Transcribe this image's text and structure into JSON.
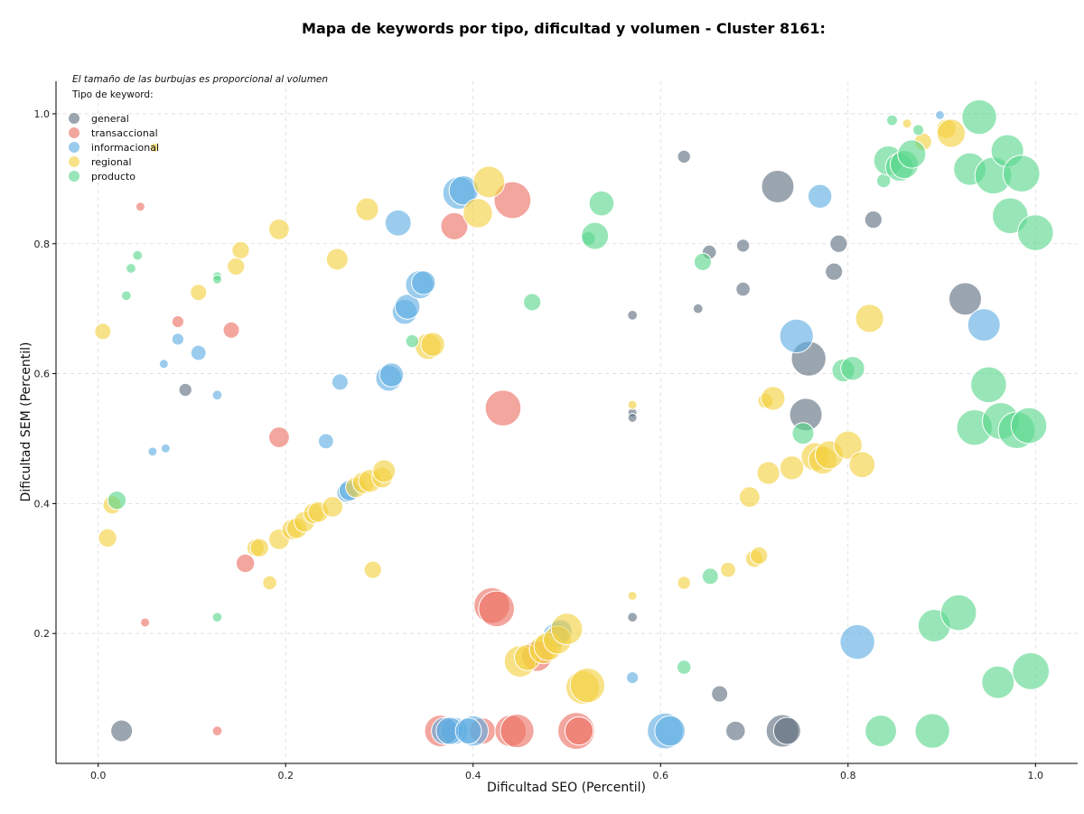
{
  "chart_data": {
    "type": "scatter",
    "title": "Mapa de keywords por tipo, dificultad y volumen - Cluster 8161:",
    "xlabel": "Dificultad SEO (Percentil)",
    "ylabel": "Dificultad SEM (Percentil)",
    "xlim": [
      -0.045,
      1.045
    ],
    "ylim": [
      0.0,
      1.05
    ],
    "xticks": [
      "0.0",
      "0.2",
      "0.4",
      "0.6",
      "0.8",
      "1.0"
    ],
    "yticks": [
      "0.2",
      "0.4",
      "0.6",
      "0.8",
      "1.0"
    ],
    "grid": true,
    "note": "El tamaño de las burbujas es proporcional al volumen",
    "legend": {
      "title": "Tipo de keyword:",
      "placement": "top-left"
    },
    "series": [
      {
        "name": "general",
        "color": "#5d6d7e",
        "points": [
          [
            0.025,
            0.05,
            2
          ],
          [
            0.093,
            0.575,
            1.2
          ],
          [
            0.57,
            0.69,
            0.9
          ],
          [
            0.57,
            0.54,
            0.8
          ],
          [
            0.57,
            0.532,
            0.8
          ],
          [
            0.57,
            0.225,
            0.9
          ],
          [
            0.625,
            0.934,
            1.2
          ],
          [
            0.652,
            0.787,
            1.3
          ],
          [
            0.688,
            0.797,
            1.2
          ],
          [
            0.688,
            0.73,
            1.3
          ],
          [
            0.64,
            0.7,
            0.9
          ],
          [
            0.663,
            0.107,
            1.5
          ],
          [
            0.68,
            0.05,
            1.8
          ],
          [
            0.725,
            0.888,
            3
          ],
          [
            0.73,
            0.05,
            3
          ],
          [
            0.735,
            0.05,
            2.5
          ],
          [
            0.755,
            0.537,
            3
          ],
          [
            0.758,
            0.623,
            3.2
          ],
          [
            0.785,
            0.757,
            1.6
          ],
          [
            0.79,
            0.8,
            1.6
          ],
          [
            0.827,
            0.837,
            1.6
          ],
          [
            0.925,
            0.715,
            3
          ]
        ]
      },
      {
        "name": "transaccional",
        "color": "#ec7063",
        "points": [
          [
            0.045,
            0.857,
            0.6
          ],
          [
            0.05,
            0.217,
            0.6
          ],
          [
            0.085,
            0.68,
            1.1
          ],
          [
            0.127,
            0.05,
            0.9
          ],
          [
            0.142,
            0.667,
            1.5
          ],
          [
            0.157,
            0.308,
            1.7
          ],
          [
            0.193,
            0.502,
            1.9
          ],
          [
            0.38,
            0.827,
            2.5
          ],
          [
            0.365,
            0.05,
            2.9
          ],
          [
            0.41,
            0.05,
            2.4
          ],
          [
            0.42,
            0.243,
            3.3
          ],
          [
            0.425,
            0.238,
            3.3
          ],
          [
            0.432,
            0.547,
            3.3
          ],
          [
            0.442,
            0.867,
            3.4
          ],
          [
            0.44,
            0.05,
            2.9
          ],
          [
            0.447,
            0.05,
            3.1
          ],
          [
            0.468,
            0.165,
            2.8
          ],
          [
            0.51,
            0.05,
            3.4
          ],
          [
            0.513,
            0.05,
            2.6
          ]
        ]
      },
      {
        "name": "informacional",
        "color": "#5dade2",
        "points": [
          [
            0.058,
            0.48,
            0.6
          ],
          [
            0.07,
            0.615,
            0.6
          ],
          [
            0.072,
            0.485,
            0.6
          ],
          [
            0.085,
            0.653,
            1.1
          ],
          [
            0.107,
            0.632,
            1.4
          ],
          [
            0.127,
            0.567,
            0.9
          ],
          [
            0.243,
            0.496,
            1.4
          ],
          [
            0.258,
            0.587,
            1.5
          ],
          [
            0.265,
            0.417,
            1.8
          ],
          [
            0.268,
            0.42,
            1.9
          ],
          [
            0.31,
            0.593,
            2.4
          ],
          [
            0.313,
            0.598,
            2.2
          ],
          [
            0.32,
            0.832,
            2.4
          ],
          [
            0.327,
            0.695,
            2.3
          ],
          [
            0.33,
            0.703,
            2.3
          ],
          [
            0.343,
            0.737,
            2.6
          ],
          [
            0.347,
            0.74,
            2.2
          ],
          [
            0.38,
            0.05,
            2.5
          ],
          [
            0.385,
            0.878,
            3
          ],
          [
            0.39,
            0.882,
            2.7
          ],
          [
            0.37,
            0.05,
            2.5
          ],
          [
            0.375,
            0.05,
            2.5
          ],
          [
            0.4,
            0.05,
            2.8
          ],
          [
            0.395,
            0.05,
            2.4
          ],
          [
            0.488,
            0.197,
            2.3
          ],
          [
            0.493,
            0.203,
            2.2
          ],
          [
            0.57,
            0.132,
            1.1
          ],
          [
            0.605,
            0.05,
            3.3
          ],
          [
            0.61,
            0.05,
            2.8
          ],
          [
            0.77,
            0.873,
            2.2
          ],
          [
            0.745,
            0.658,
            3.1
          ],
          [
            0.81,
            0.187,
            3.2
          ],
          [
            0.898,
            0.998,
            0.8
          ],
          [
            0.945,
            0.675,
            3
          ]
        ]
      },
      {
        "name": "regional",
        "color": "#f4d03f",
        "points": [
          [
            0.005,
            0.665,
            1.5
          ],
          [
            0.01,
            0.347,
            1.7
          ],
          [
            0.015,
            0.398,
            1.7
          ],
          [
            0.06,
            0.948,
            0.5
          ],
          [
            0.107,
            0.725,
            1.5
          ],
          [
            0.147,
            0.765,
            1.6
          ],
          [
            0.152,
            0.79,
            1.6
          ],
          [
            0.168,
            0.332,
            1.6
          ],
          [
            0.172,
            0.332,
            1.7
          ],
          [
            0.183,
            0.278,
            1.3
          ],
          [
            0.193,
            0.822,
            1.9
          ],
          [
            0.193,
            0.345,
            1.9
          ],
          [
            0.207,
            0.36,
            1.9
          ],
          [
            0.212,
            0.362,
            1.9
          ],
          [
            0.22,
            0.372,
            1.9
          ],
          [
            0.23,
            0.385,
            1.9
          ],
          [
            0.235,
            0.387,
            1.9
          ],
          [
            0.25,
            0.395,
            1.9
          ],
          [
            0.255,
            0.776,
            2
          ],
          [
            0.275,
            0.425,
            1.9
          ],
          [
            0.283,
            0.432,
            2
          ],
          [
            0.29,
            0.435,
            2.1
          ],
          [
            0.293,
            0.298,
            1.6
          ],
          [
            0.287,
            0.853,
            2.1
          ],
          [
            0.303,
            0.44,
            1.9
          ],
          [
            0.305,
            0.45,
            2.1
          ],
          [
            0.352,
            0.642,
            2.4
          ],
          [
            0.357,
            0.645,
            2.2
          ],
          [
            0.405,
            0.847,
            2.7
          ],
          [
            0.417,
            0.895,
            2.9
          ],
          [
            0.45,
            0.157,
            2.9
          ],
          [
            0.458,
            0.163,
            2.4
          ],
          [
            0.475,
            0.175,
            2.6
          ],
          [
            0.48,
            0.18,
            2.6
          ],
          [
            0.49,
            0.19,
            2.6
          ],
          [
            0.5,
            0.207,
            2.9
          ],
          [
            0.517,
            0.117,
            3.1
          ],
          [
            0.522,
            0.12,
            3.2
          ],
          [
            0.57,
            0.552,
            0.8
          ],
          [
            0.57,
            0.258,
            0.8
          ],
          [
            0.625,
            0.278,
            1.2
          ],
          [
            0.672,
            0.298,
            1.4
          ],
          [
            0.7,
            0.315,
            1.6
          ],
          [
            0.705,
            0.32,
            1.6
          ],
          [
            0.695,
            0.41,
            1.9
          ],
          [
            0.712,
            0.558,
            1.4
          ],
          [
            0.72,
            0.562,
            2.2
          ],
          [
            0.715,
            0.447,
            2.1
          ],
          [
            0.74,
            0.455,
            2.2
          ],
          [
            0.765,
            0.472,
            2.6
          ],
          [
            0.773,
            0.467,
            2.6
          ],
          [
            0.78,
            0.475,
            2.6
          ],
          [
            0.8,
            0.49,
            2.6
          ],
          [
            0.815,
            0.46,
            2.4
          ],
          [
            0.823,
            0.685,
            2.6
          ],
          [
            0.863,
            0.985,
            0.8
          ],
          [
            0.88,
            0.957,
            1.6
          ],
          [
            0.905,
            0.977,
            1.8
          ],
          [
            0.91,
            0.97,
            2.6
          ]
        ]
      },
      {
        "name": "producto",
        "color": "#58d68d",
        "points": [
          [
            0.02,
            0.405,
            1.7
          ],
          [
            0.03,
            0.72,
            0.9
          ],
          [
            0.035,
            0.762,
            0.9
          ],
          [
            0.042,
            0.782,
            0.9
          ],
          [
            0.127,
            0.75,
            0.7
          ],
          [
            0.127,
            0.745,
            0.7
          ],
          [
            0.127,
            0.225,
            0.9
          ],
          [
            0.335,
            0.65,
            1.2
          ],
          [
            0.463,
            0.71,
            1.6
          ],
          [
            0.523,
            0.808,
            1.3
          ],
          [
            0.53,
            0.812,
            2.5
          ],
          [
            0.537,
            0.862,
            2.3
          ],
          [
            0.625,
            0.148,
            1.3
          ],
          [
            0.645,
            0.772,
            1.6
          ],
          [
            0.653,
            0.288,
            1.5
          ],
          [
            0.752,
            0.508,
            2
          ],
          [
            0.795,
            0.605,
            2.1
          ],
          [
            0.805,
            0.608,
            2.2
          ],
          [
            0.835,
            0.05,
            2.9
          ],
          [
            0.838,
            0.897,
            1.3
          ],
          [
            0.843,
            0.928,
            2.7
          ],
          [
            0.847,
            0.99,
            1
          ],
          [
            0.855,
            0.918,
            2.6
          ],
          [
            0.86,
            0.922,
            2.6
          ],
          [
            0.868,
            0.938,
            2.6
          ],
          [
            0.875,
            0.975,
            1
          ],
          [
            0.89,
            0.05,
            3.2
          ],
          [
            0.892,
            0.212,
            3
          ],
          [
            0.918,
            0.232,
            3.3
          ],
          [
            0.935,
            0.517,
            3.3
          ],
          [
            0.93,
            0.915,
            3
          ],
          [
            0.94,
            0.995,
            3.2
          ],
          [
            0.95,
            0.583,
            3.3
          ],
          [
            0.955,
            0.905,
            3.4
          ],
          [
            0.96,
            0.125,
            3
          ],
          [
            0.963,
            0.527,
            3.4
          ],
          [
            0.97,
            0.943,
            3
          ],
          [
            0.973,
            0.843,
            3.3
          ],
          [
            0.98,
            0.513,
            3.4
          ],
          [
            0.985,
            0.908,
            3.4
          ],
          [
            0.993,
            0.52,
            3.3
          ],
          [
            0.995,
            0.142,
            3.4
          ],
          [
            1.0,
            0.817,
            3.3
          ]
        ]
      }
    ]
  }
}
